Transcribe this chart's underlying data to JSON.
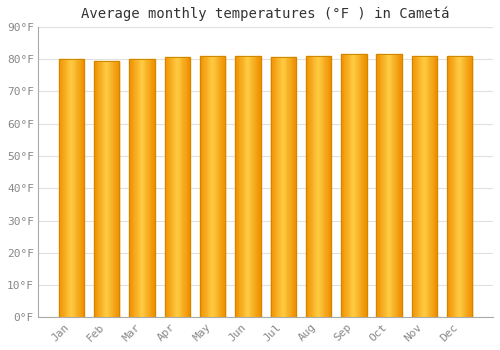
{
  "title": "Average monthly temperatures (°F ) in Cametá",
  "months": [
    "Jan",
    "Feb",
    "Mar",
    "Apr",
    "May",
    "Jun",
    "Jul",
    "Aug",
    "Sep",
    "Oct",
    "Nov",
    "Dec"
  ],
  "values": [
    80,
    79.5,
    80,
    80.5,
    81,
    81,
    80.5,
    81,
    81.5,
    81.5,
    81,
    81
  ],
  "ylim": [
    0,
    90
  ],
  "yticks": [
    0,
    10,
    20,
    30,
    40,
    50,
    60,
    70,
    80,
    90
  ],
  "ytick_labels": [
    "0°F",
    "10°F",
    "20°F",
    "30°F",
    "40°F",
    "50°F",
    "60°F",
    "70°F",
    "80°F",
    "90°F"
  ],
  "bar_color_center": "#FFCC44",
  "bar_color_edge": "#F09000",
  "bar_border_color": "#CC8800",
  "background_color": "#FFFFFF",
  "grid_color": "#E0E0E0",
  "title_fontsize": 10,
  "tick_fontsize": 8,
  "tick_color": "#888888",
  "title_color": "#333333"
}
